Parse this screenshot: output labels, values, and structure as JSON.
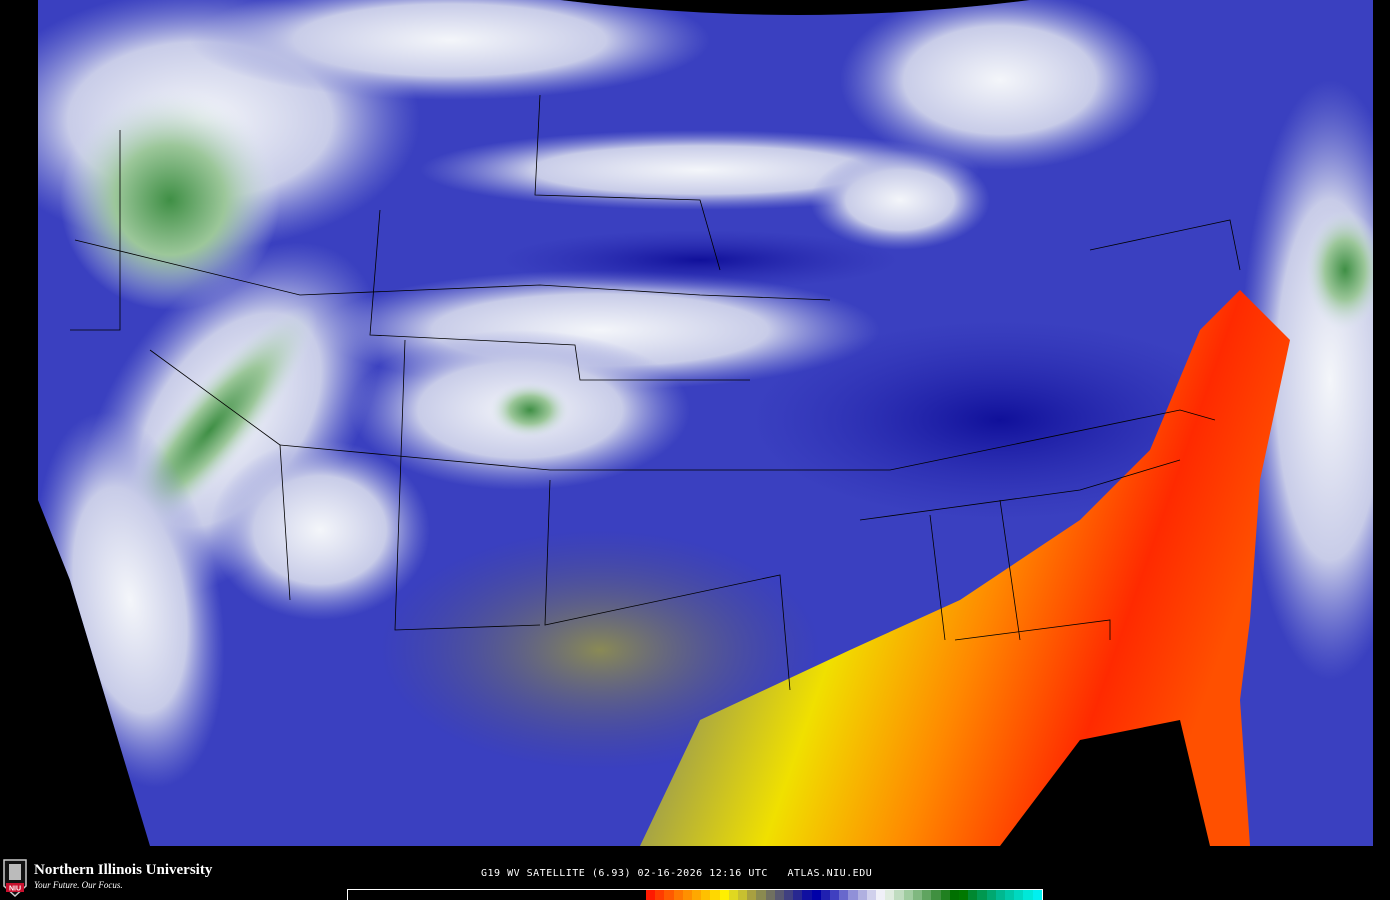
{
  "map": {
    "product": "GOES-19 water vapor satellite imagery, CONUS",
    "colors": {
      "base_blue": "#3a3fc0",
      "dark_blue": "#1a1aa0",
      "light": "#e8ecf4",
      "green": "#4a9a55",
      "olive": "#7a7a60",
      "yellow": "#f0e000",
      "orange": "#ff8000",
      "red": "#ff2000"
    }
  },
  "footer": {
    "university_name": "Northern Illinois University",
    "tagline": "Your Future. Our Focus.",
    "logo_text": "NIU",
    "caption": "G19 WV SATELLITE (6.93) 02-16-2026 12:16 UTC   ATLAS.NIU.EDU"
  },
  "colorbar": {
    "colors": [
      "#ff1a00",
      "#ff3c00",
      "#ff5a00",
      "#ff7800",
      "#ff9000",
      "#ffa800",
      "#ffc000",
      "#ffd800",
      "#fff000",
      "#e0d820",
      "#c8c030",
      "#a8a040",
      "#8a8a50",
      "#707060",
      "#585870",
      "#404080",
      "#282890",
      "#1010a0",
      "#0000a8",
      "#2020b0",
      "#4040c0",
      "#6868cc",
      "#9090d8",
      "#b0b0e0",
      "#d0d0ec",
      "#f0f0f8",
      "#e0ece0",
      "#c0dcc0",
      "#a0cca0",
      "#80b880",
      "#60a460",
      "#409040",
      "#208020",
      "#007000",
      "#007800",
      "#008830",
      "#009850",
      "#00a870",
      "#00b890",
      "#00c8a8",
      "#00d8c0",
      "#00e8d8",
      "#00f0f0"
    ]
  }
}
